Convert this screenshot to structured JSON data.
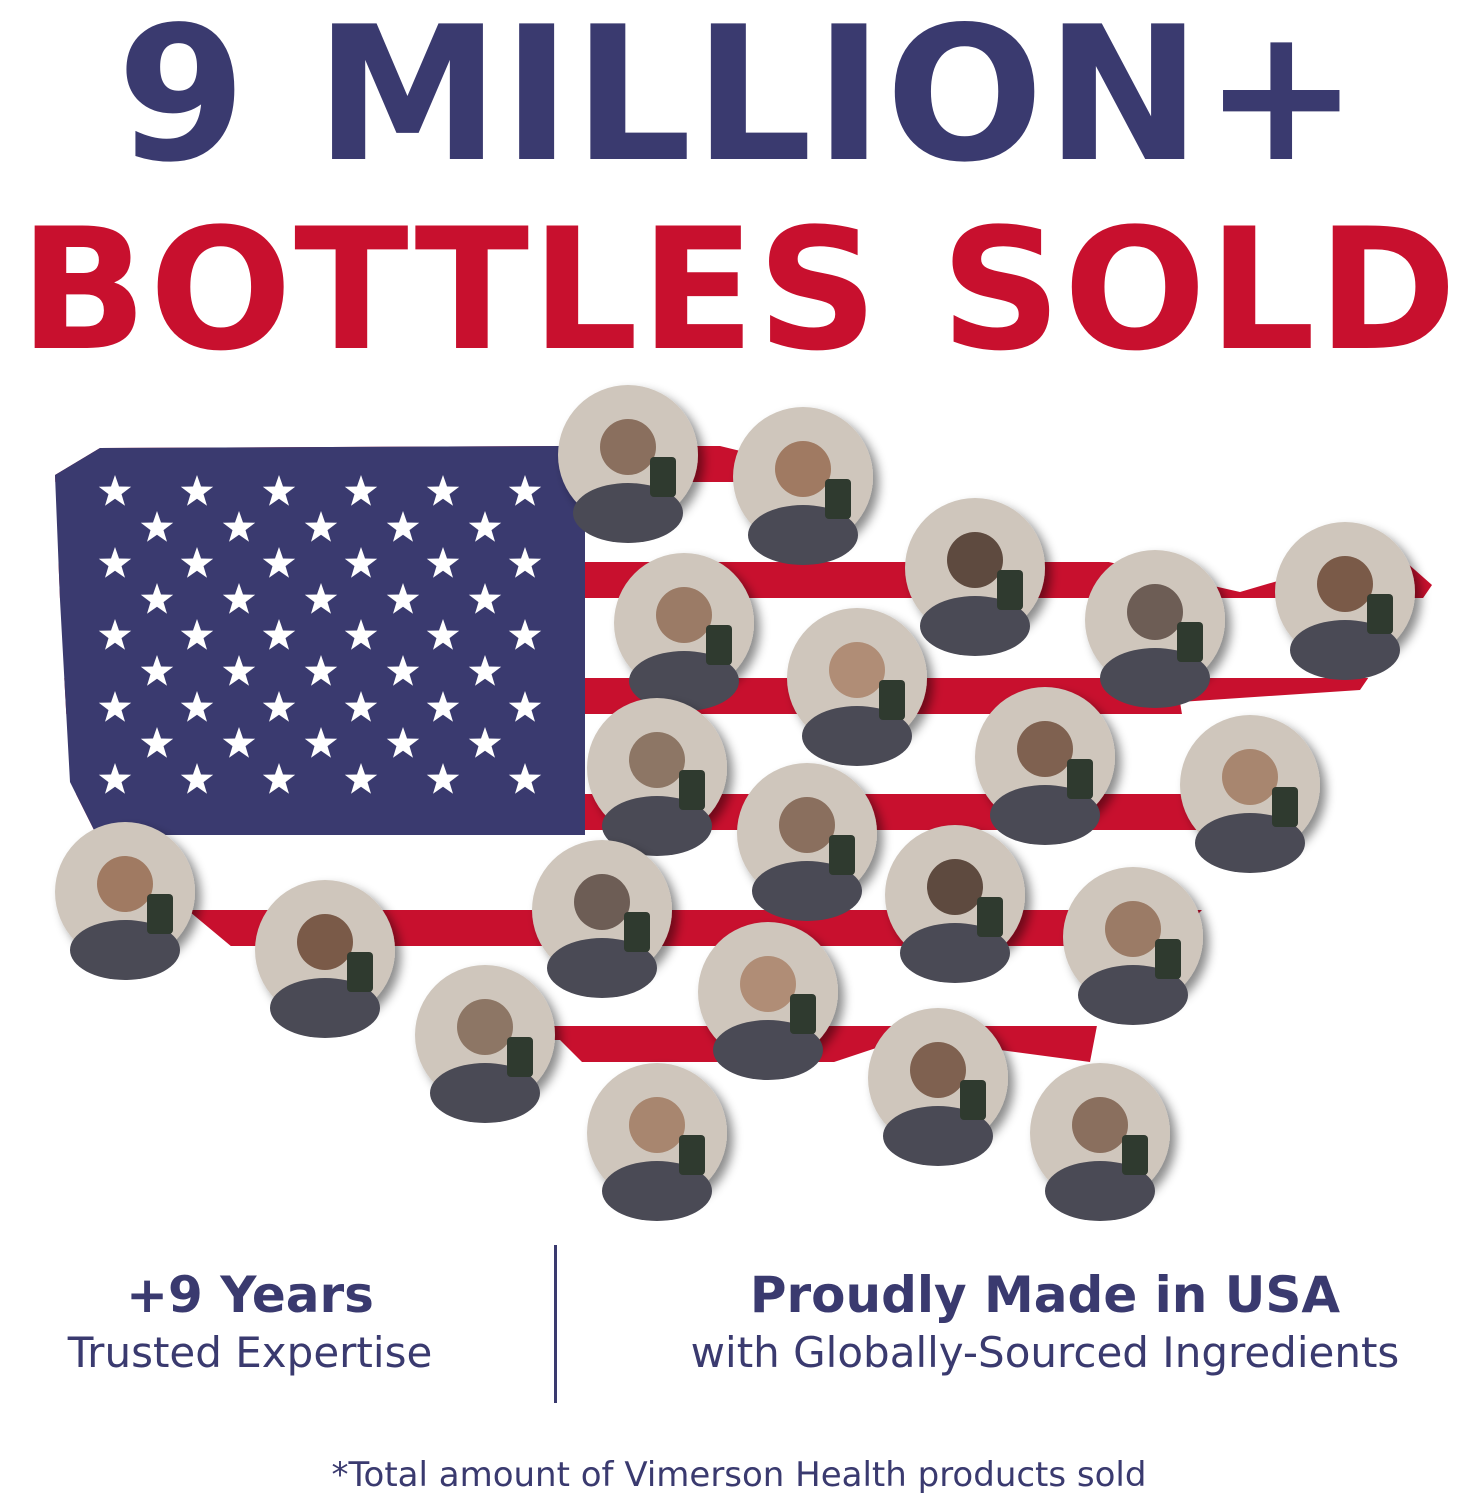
{
  "headline": {
    "line1": "9 MILLION+",
    "line2": "BOTTLES SOLD"
  },
  "colors": {
    "navy": "#3a3a6f",
    "red": "#c8102e",
    "white": "#ffffff"
  },
  "graphic": {
    "subject": "us-map-flag-with-customer-photos",
    "photo_count": 21
  },
  "stats": [
    {
      "title": "+9 Years",
      "subtitle": "Trusted Expertise"
    },
    {
      "title": "Proudly Made in USA",
      "subtitle": "with Globally-Sourced Ingredients"
    }
  ],
  "footnote": "*Total amount of Vimerson Health products sold"
}
